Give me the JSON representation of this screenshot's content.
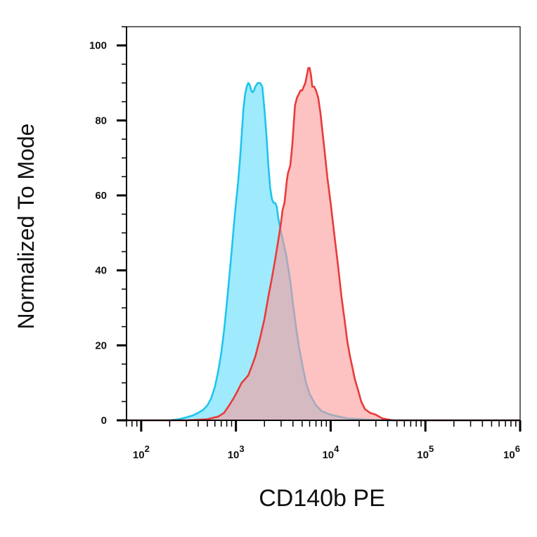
{
  "chart_data": {
    "type": "area",
    "title": "",
    "xlabel": "CD140b PE",
    "ylabel": "Normalized To Mode",
    "x_scale": "log",
    "xlim": [
      70,
      1000000
    ],
    "ylim": [
      0,
      105
    ],
    "x_ticks": [
      {
        "value": 100,
        "base": "10",
        "exp": "2"
      },
      {
        "value": 1000,
        "base": "10",
        "exp": "3"
      },
      {
        "value": 10000,
        "base": "10",
        "exp": "4"
      },
      {
        "value": 100000,
        "base": "10",
        "exp": "5"
      },
      {
        "value": 1000000,
        "base": "10",
        "exp": "6"
      }
    ],
    "y_ticks": [
      "0",
      "20",
      "40",
      "60",
      "80",
      "100"
    ],
    "y_tick_values": [
      0,
      20,
      40,
      60,
      80,
      100
    ],
    "grid": false,
    "legend": "none",
    "series": [
      {
        "color": "#1ec5ee",
        "fill": "#7fe3fb",
        "points": [
          [
            70,
            0
          ],
          [
            200,
            0
          ],
          [
            250,
            0.3
          ],
          [
            300,
            0.8
          ],
          [
            350,
            1.3
          ],
          [
            400,
            2
          ],
          [
            450,
            2.8
          ],
          [
            500,
            4
          ],
          [
            550,
            6
          ],
          [
            600,
            9
          ],
          [
            650,
            13
          ],
          [
            700,
            18
          ],
          [
            750,
            24
          ],
          [
            800,
            31
          ],
          [
            850,
            38
          ],
          [
            900,
            45
          ],
          [
            950,
            52
          ],
          [
            1000,
            58
          ],
          [
            1050,
            63
          ],
          [
            1100,
            69
          ],
          [
            1150,
            76
          ],
          [
            1200,
            83
          ],
          [
            1250,
            87
          ],
          [
            1300,
            89
          ],
          [
            1350,
            90
          ],
          [
            1400,
            89.5
          ],
          [
            1450,
            88
          ],
          [
            1500,
            87.5
          ],
          [
            1550,
            88
          ],
          [
            1600,
            89
          ],
          [
            1700,
            90
          ],
          [
            1800,
            90
          ],
          [
            1900,
            89
          ],
          [
            2000,
            83
          ],
          [
            2100,
            76
          ],
          [
            2200,
            68
          ],
          [
            2300,
            62
          ],
          [
            2400,
            59
          ],
          [
            2500,
            58
          ],
          [
            2600,
            58
          ],
          [
            2700,
            57
          ],
          [
            2800,
            54
          ],
          [
            2900,
            52
          ],
          [
            3000,
            50
          ],
          [
            3200,
            47
          ],
          [
            3400,
            44
          ],
          [
            3600,
            40
          ],
          [
            3800,
            36
          ],
          [
            4000,
            31
          ],
          [
            4300,
            25
          ],
          [
            4600,
            20
          ],
          [
            5000,
            15
          ],
          [
            5500,
            10
          ],
          [
            6000,
            7
          ],
          [
            7000,
            4
          ],
          [
            8000,
            2.5
          ],
          [
            10000,
            1.5
          ],
          [
            15000,
            0.5
          ],
          [
            25000,
            0.2
          ],
          [
            40000,
            0
          ],
          [
            1000000,
            0
          ]
        ]
      },
      {
        "color": "#e83b3b",
        "fill": "#fb9a9a",
        "points": [
          [
            70,
            0
          ],
          [
            300,
            0
          ],
          [
            500,
            0.3
          ],
          [
            650,
            1
          ],
          [
            750,
            2
          ],
          [
            850,
            4
          ],
          [
            950,
            6
          ],
          [
            1050,
            8
          ],
          [
            1150,
            10
          ],
          [
            1250,
            11
          ],
          [
            1350,
            12
          ],
          [
            1450,
            14
          ],
          [
            1600,
            17
          ],
          [
            1800,
            22
          ],
          [
            2000,
            27
          ],
          [
            2200,
            33
          ],
          [
            2400,
            38
          ],
          [
            2600,
            43
          ],
          [
            2800,
            48
          ],
          [
            3000,
            53
          ],
          [
            3100,
            56
          ],
          [
            3250,
            58
          ],
          [
            3350,
            61
          ],
          [
            3450,
            64
          ],
          [
            3550,
            66
          ],
          [
            3650,
            67
          ],
          [
            3750,
            68
          ],
          [
            3850,
            71
          ],
          [
            3950,
            74
          ],
          [
            4100,
            80
          ],
          [
            4200,
            84
          ],
          [
            4400,
            86
          ],
          [
            4600,
            87
          ],
          [
            4800,
            88
          ],
          [
            5000,
            88
          ],
          [
            5200,
            89
          ],
          [
            5400,
            90
          ],
          [
            5600,
            92
          ],
          [
            5800,
            94
          ],
          [
            6000,
            94
          ],
          [
            6200,
            92
          ],
          [
            6400,
            89
          ],
          [
            6700,
            89
          ],
          [
            7000,
            88
          ],
          [
            7400,
            86
          ],
          [
            7800,
            82
          ],
          [
            8200,
            77
          ],
          [
            8700,
            71
          ],
          [
            9200,
            65
          ],
          [
            10000,
            58
          ],
          [
            11000,
            49
          ],
          [
            12000,
            41
          ],
          [
            13000,
            33
          ],
          [
            14000,
            27
          ],
          [
            15000,
            21
          ],
          [
            16000,
            17
          ],
          [
            17000,
            14
          ],
          [
            18000,
            11
          ],
          [
            19500,
            8
          ],
          [
            21000,
            5
          ],
          [
            23000,
            3
          ],
          [
            26000,
            2
          ],
          [
            30000,
            1.5
          ],
          [
            35000,
            0.5
          ],
          [
            45000,
            0
          ],
          [
            1000000,
            0
          ]
        ]
      }
    ]
  }
}
